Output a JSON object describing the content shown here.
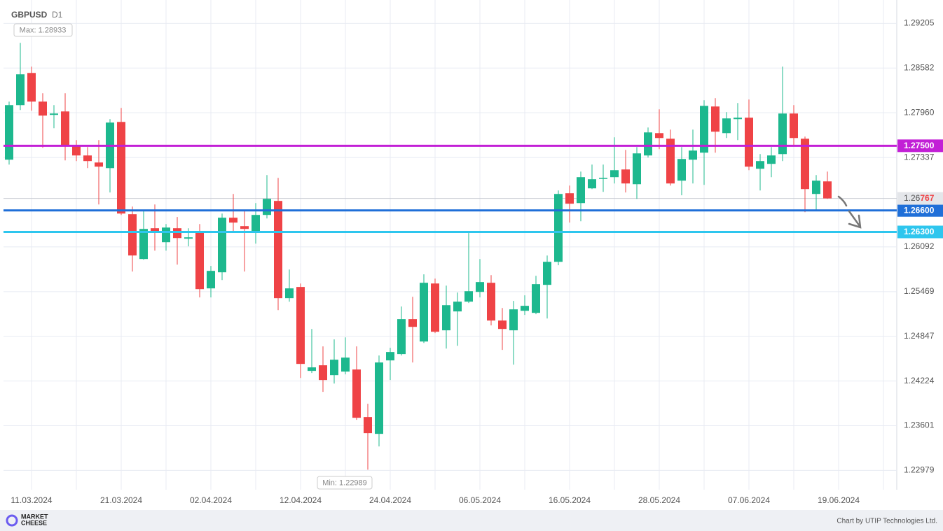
{
  "chart_data": {
    "type": "candlestick",
    "title": "GBPUSD",
    "subtitle": "D1",
    "categories": [
      null,
      null,
      "11.03.2024",
      null,
      null,
      null,
      null,
      null,
      null,
      null,
      "21.03.2024",
      null,
      null,
      null,
      null,
      null,
      null,
      null,
      "02.04.2024",
      null,
      null,
      null,
      null,
      null,
      null,
      null,
      "12.04.2024",
      null,
      null,
      null,
      null,
      null,
      null,
      null,
      "24.04.2024",
      null,
      null,
      null,
      null,
      null,
      null,
      null,
      "06.05.2024",
      null,
      null,
      null,
      null,
      null,
      null,
      null,
      "16.05.2024",
      null,
      null,
      null,
      null,
      null,
      null,
      null,
      "28.05.2024",
      null,
      null,
      null,
      null,
      null,
      null,
      null,
      "07.06.2024",
      null,
      null,
      null,
      null,
      null,
      null,
      null,
      "19.06.2024"
    ],
    "open": [
      1.27306,
      1.28066,
      1.28514,
      1.28115,
      1.2793,
      1.27978,
      1.27511,
      1.27365,
      1.27267,
      1.27189,
      1.27832,
      1.26547,
      1.25923,
      1.26352,
      1.26157,
      1.26352,
      1.26206,
      1.26303,
      1.25514,
      1.25738,
      1.26498,
      1.26381,
      1.26313,
      1.26537,
      1.26732,
      1.25378,
      1.25534,
      1.24365,
      1.24443,
      1.24306,
      1.24355,
      1.24384,
      1.23722,
      1.23488,
      1.24511,
      1.24599,
      1.25086,
      1.24774,
      1.25582,
      1.2493,
      1.25193,
      1.25329,
      1.25465,
      1.25592,
      1.25066,
      1.2493,
      1.25202,
      1.25173,
      1.25563,
      1.25884,
      1.26839,
      1.26702,
      1.26907,
      1.27043,
      1.27063,
      1.2717,
      1.26965,
      1.27365,
      1.27676,
      1.27598,
      1.27014,
      1.27306,
      1.27404,
      1.28047,
      1.27676,
      1.27871,
      1.27891,
      1.2718,
      1.27248,
      1.27384,
      1.27949,
      1.27598,
      1.26829,
      1.27004,
      null
    ],
    "high": [
      1.28115,
      1.28933,
      1.28602,
      1.28232,
      1.28066,
      1.28232,
      1.27579,
      1.27482,
      1.27579,
      1.27871,
      1.28027,
      1.26654,
      1.26605,
      1.26683,
      1.2641,
      1.26508,
      1.26352,
      1.2641,
      1.25826,
      1.26556,
      1.26829,
      1.26605,
      1.26702,
      1.27092,
      1.27053,
      1.25777,
      1.25582,
      1.24949,
      1.24706,
      1.24803,
      1.24832,
      1.24706,
      1.23907,
      1.24579,
      1.24686,
      1.25261,
      1.25397,
      1.25709,
      1.2565,
      1.25553,
      1.25456,
      1.26284,
      1.25923,
      1.25699,
      1.25241,
      1.25339,
      1.25417,
      1.25689,
      1.25972,
      1.26878,
      1.26946,
      1.27141,
      1.27238,
      1.27238,
      1.27618,
      1.27443,
      1.27482,
      1.27754,
      1.28008,
      1.27725,
      1.27482,
      1.27725,
      1.28134,
      1.28163,
      1.27969,
      1.28095,
      1.28144,
      1.27384,
      1.27482,
      1.28602,
      1.28066,
      1.27628,
      1.27092,
      1.27141,
      null
    ],
    "low": [
      1.27238,
      1.27998,
      1.27988,
      1.27472,
      1.27745,
      1.27297,
      1.27287,
      1.27189,
      1.26683,
      1.26849,
      1.26537,
      1.25748,
      1.25913,
      1.2604,
      1.2604,
      1.25845,
      1.26099,
      1.25388,
      1.25388,
      1.25631,
      1.26313,
      1.25748,
      1.26137,
      1.26488,
      1.25212,
      1.25329,
      1.24267,
      1.24336,
      1.24073,
      1.24189,
      1.24316,
      1.23683,
      1.22989,
      1.23313,
      1.24238,
      1.24579,
      1.24482,
      1.24754,
      1.24891,
      1.24676,
      1.24715,
      1.2531,
      1.25388,
      1.24998,
      1.24657,
      1.24452,
      1.25144,
      1.25154,
      1.25095,
      1.25836,
      1.2643,
      1.26449,
      1.26897,
      1.26858,
      1.26975,
      1.26849,
      1.26761,
      1.27335,
      1.27452,
      1.26946,
      1.2681,
      1.26975,
      1.26956,
      1.27404,
      1.27608,
      1.27579,
      1.2716,
      1.26878,
      1.27063,
      1.27287,
      1.27501,
      1.26576,
      1.26605,
      1.26761,
      null
    ],
    "close": [
      1.28066,
      1.28495,
      1.28115,
      1.2792,
      1.27949,
      1.27501,
      1.27365,
      1.27287,
      1.27209,
      1.27823,
      1.26556,
      1.25972,
      1.26342,
      1.26313,
      1.26361,
      1.26215,
      1.26225,
      1.25504,
      1.25758,
      1.26498,
      1.2643,
      1.26342,
      1.26537,
      1.26761,
      1.25378,
      1.25514,
      1.24462,
      1.24414,
      1.24238,
      1.24521,
      1.2455,
      1.23712,
      1.23498,
      1.24482,
      1.24628,
      1.25086,
      1.24978,
      1.25592,
      1.2491,
      1.2528,
      1.25329,
      1.25475,
      1.25602,
      1.25066,
      1.24949,
      1.25222,
      1.25271,
      1.25573,
      1.25884,
      1.26829,
      1.26693,
      1.27063,
      1.27034,
      1.27053,
      1.2716,
      1.26975,
      1.27394,
      1.27686,
      1.27608,
      1.26975,
      1.27316,
      1.27433,
      1.28056,
      1.27696,
      1.27881,
      1.27891,
      1.27209,
      1.27287,
      1.27365,
      1.27949,
      1.27608,
      1.26897,
      1.27014,
      1.26767,
      null
    ],
    "up_color": "#1db88e",
    "down_color": "#ef4346",
    "ylim": [
      1.2271,
      1.2953
    ],
    "yticks": [
      1.29205,
      1.28582,
      {
        "value": 1.2796,
        "label": "1.27960"
      },
      1.27337,
      1.26092,
      1.25469,
      1.24847,
      1.24224,
      1.23601,
      1.22979
    ],
    "grid": true,
    "max_label": "Max: 1.28933",
    "min_label": "Min: 1.22989",
    "last_price": 1.26767,
    "levels": [
      {
        "value": 1.275,
        "label": "1.27500",
        "color": "#c21fd6"
      },
      {
        "value": 1.266,
        "label": "1.26600",
        "color": "#1f6fd8"
      },
      {
        "value": 1.263,
        "label": "1.26300",
        "color": "#2ec6ee"
      }
    ]
  },
  "footer": {
    "logo": [
      "MARKET",
      "CHEESE"
    ],
    "credit": "Chart by UTIP Technologies Ltd."
  }
}
